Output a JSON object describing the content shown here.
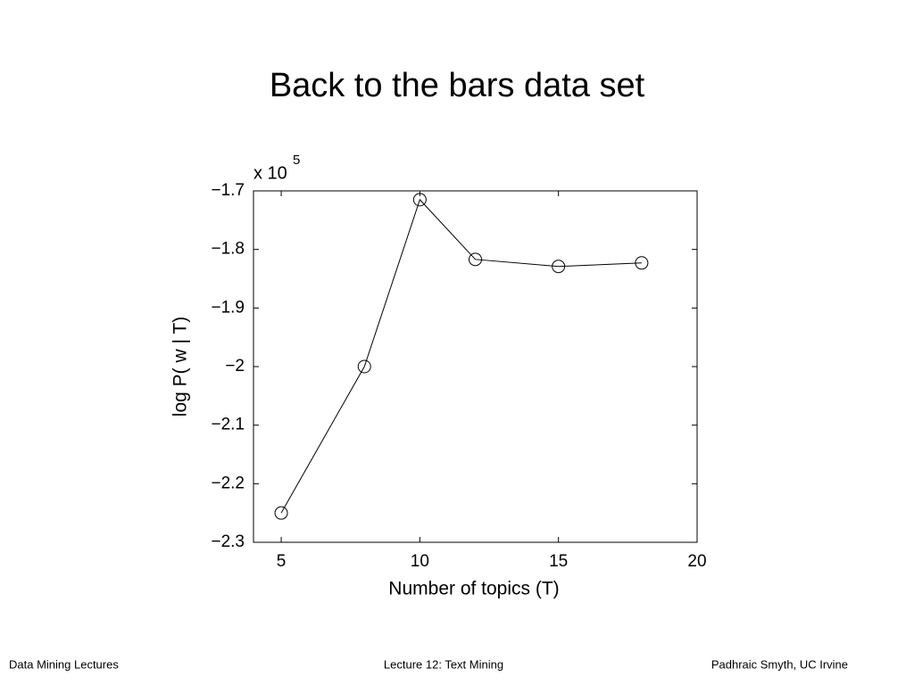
{
  "slide": {
    "title": "Back to the bars data set",
    "footer_left": "Data Mining Lectures",
    "footer_center": "Lecture 12: Text Mining",
    "footer_right": "Padhraic Smyth, UC Irvine"
  },
  "chart_data": {
    "type": "line",
    "xlabel": "Number of topics (T)",
    "ylabel": "log P( w | T)",
    "y_multiplier": "x 10",
    "y_multiplier_exp": "5",
    "x": [
      5,
      8,
      10,
      12,
      15,
      18
    ],
    "series": [
      {
        "color": "#000000",
        "values": [
          -2.25,
          -2.0,
          -1.715,
          -1.817,
          -1.829,
          -1.823
        ]
      }
    ],
    "marker": "circle",
    "xlim": [
      4,
      20
    ],
    "xticks": [
      5,
      10,
      15,
      20
    ],
    "ylim": [
      -2.3,
      -1.7
    ],
    "yticks": [
      {
        "value": -2.3,
        "label": "−2.3"
      },
      {
        "value": -2.2,
        "label": "−2.2"
      },
      {
        "value": -2.1,
        "label": "−2.1"
      },
      {
        "value": -2.0,
        "label": "−2"
      },
      {
        "value": -1.9,
        "label": "−1.9"
      },
      {
        "value": -1.8,
        "label": "−1.8"
      },
      {
        "value": -1.7,
        "label": "−1.7"
      }
    ],
    "grid": false
  }
}
